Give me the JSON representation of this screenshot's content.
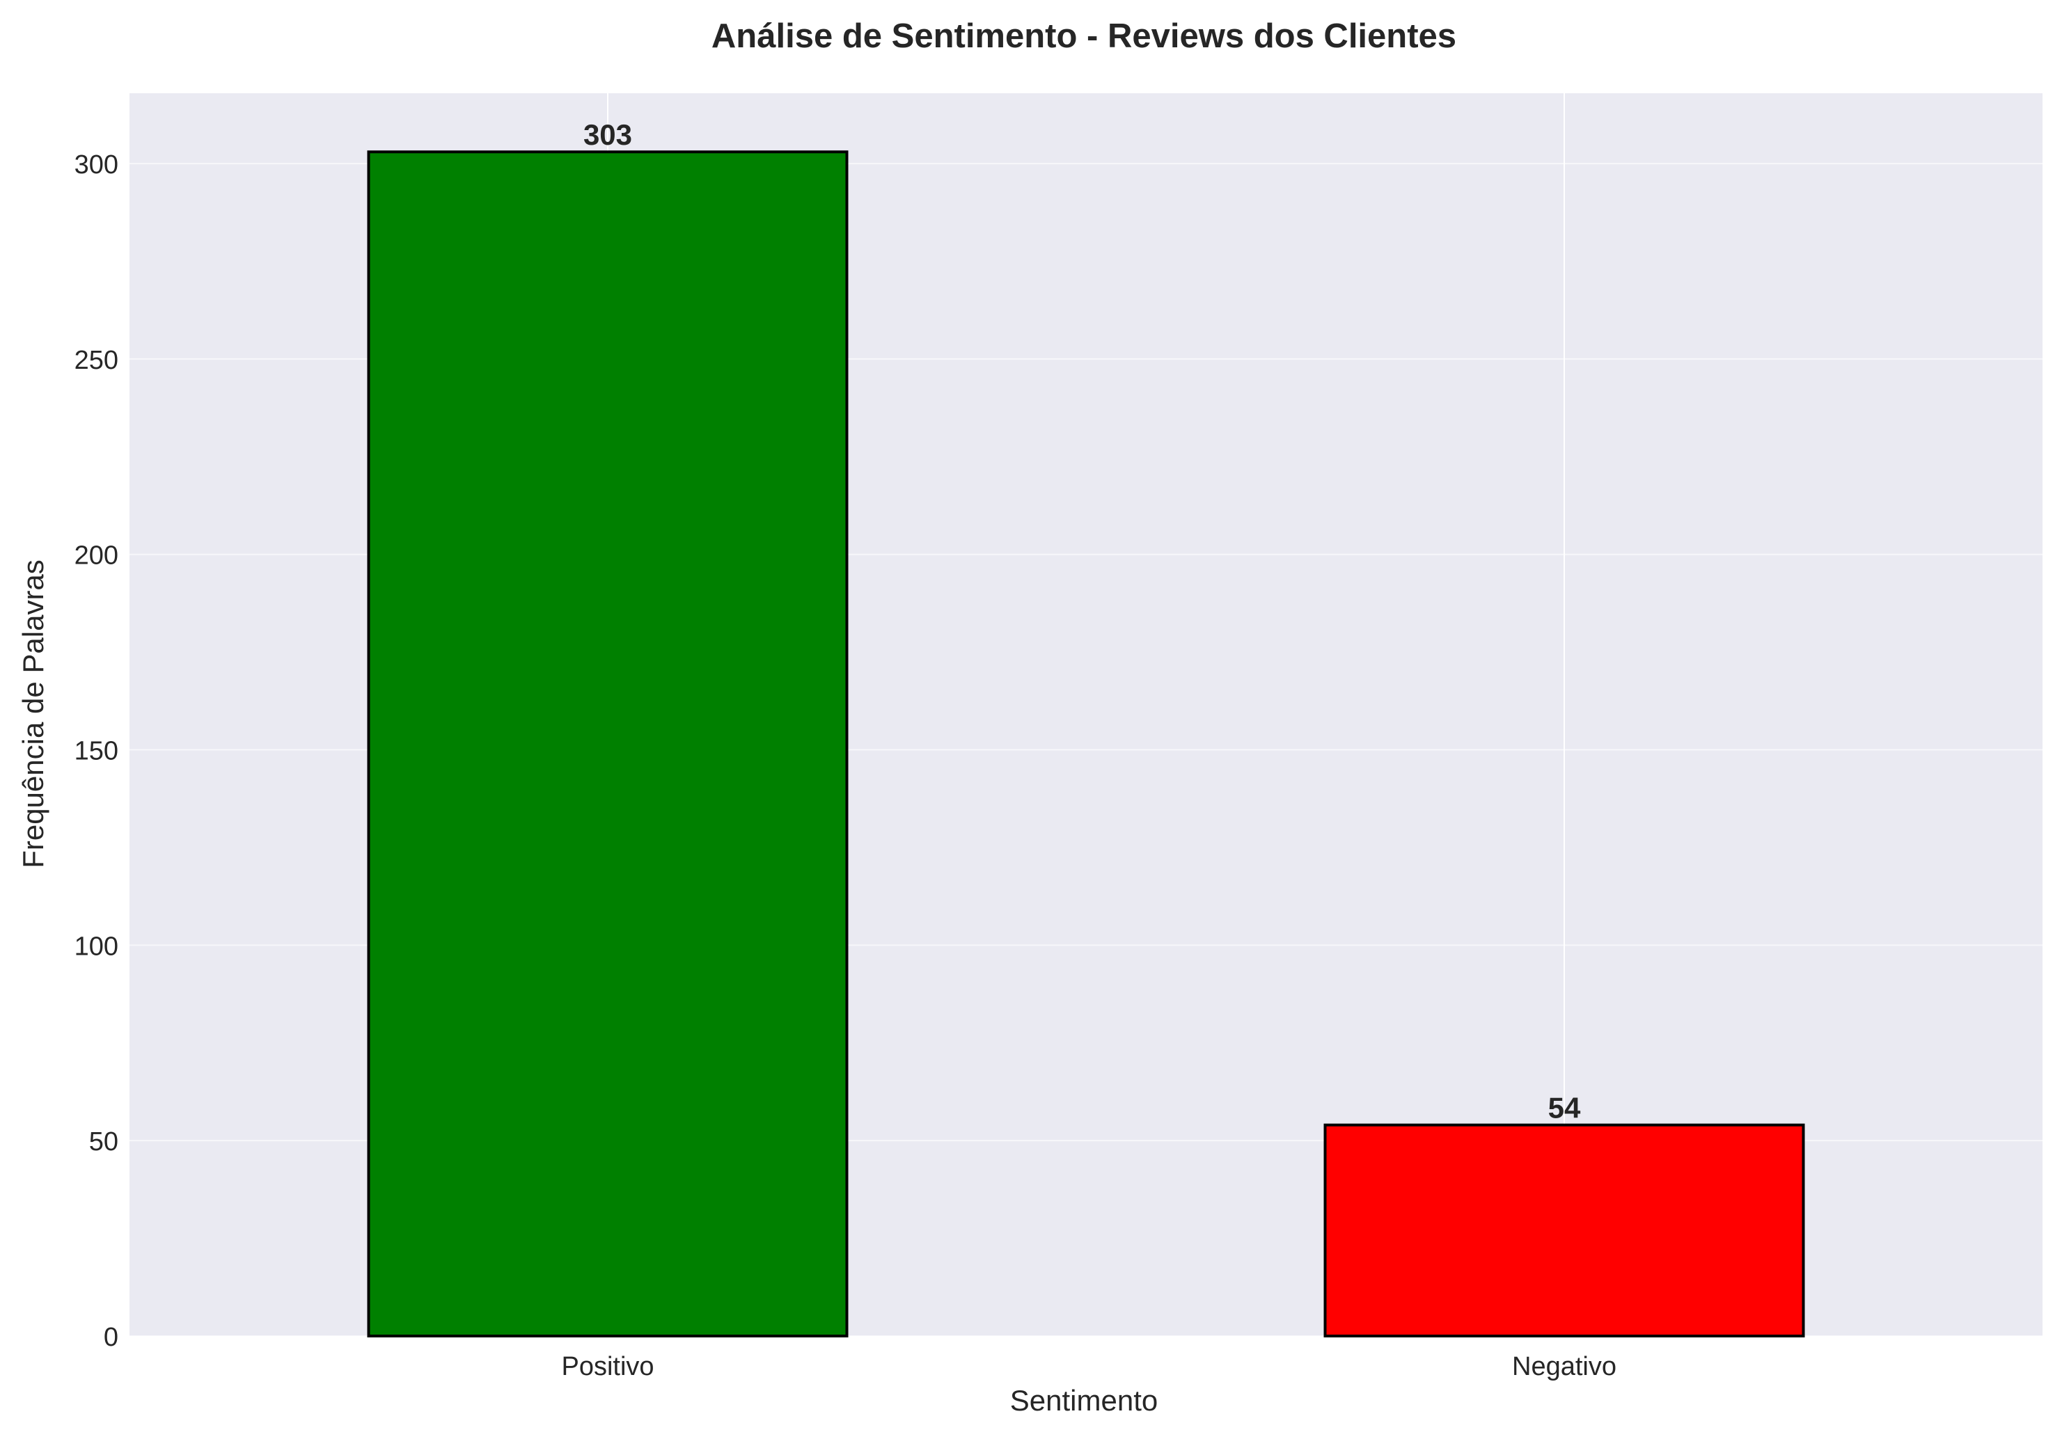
{
  "chart_data": {
    "type": "bar",
    "title": "Análise de Sentimento - Reviews dos Clientes",
    "xlabel": "Sentimento",
    "ylabel": "Frequência de Palavras",
    "categories": [
      "Positivo",
      "Negativo"
    ],
    "values": [
      303,
      54
    ],
    "data_labels": [
      "303",
      "54"
    ],
    "colors": [
      "#008000",
      "#ff0000"
    ],
    "edge_color": "#000000",
    "plot_background": "#eaeaf2",
    "grid_color": "#ffffff",
    "ylim": [
      0,
      318
    ],
    "yticks": [
      0,
      50,
      100,
      150,
      200,
      250,
      300
    ],
    "ytick_labels": [
      "0",
      "50",
      "100",
      "150",
      "200",
      "250",
      "300"
    ],
    "grid": true
  }
}
